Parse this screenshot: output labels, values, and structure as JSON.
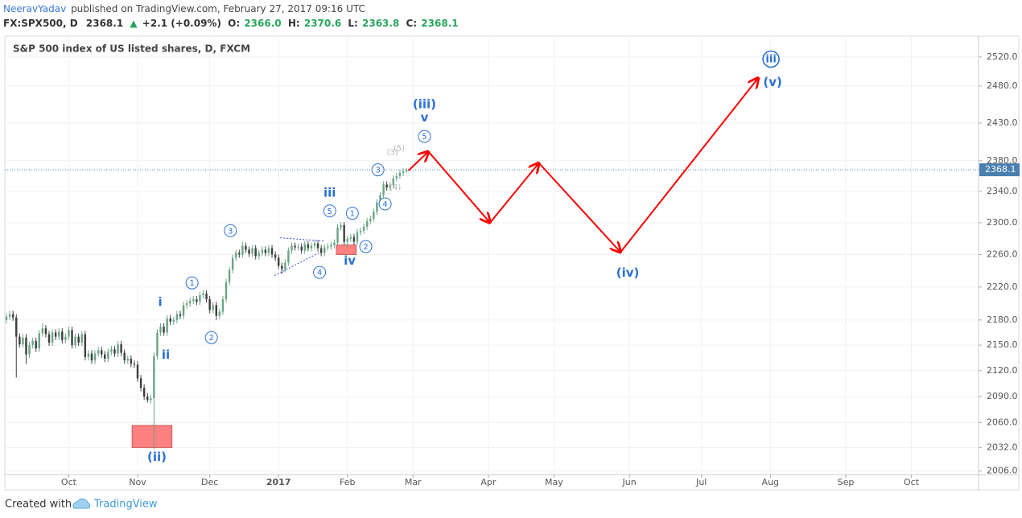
{
  "header": {
    "author": "NeeravYadav",
    "published": "published on TradingView.com, February 27, 2017 09:16 UTC",
    "symbol": "FX:SPX500, D",
    "last": "2368.1",
    "change_arrow": "▲",
    "change": "+2.1 (+0.09%)",
    "o_label": "O:",
    "o": "2366.0",
    "h_label": "H:",
    "h": "2370.6",
    "l_label": "L:",
    "l": "2363.8",
    "c_label": "C:",
    "c": "2368.1"
  },
  "chart_data": {
    "type": "candlestick",
    "title": "S&P 500 index of US listed shares, D, FXCM",
    "x": [
      -19,
      -18,
      -17,
      -16,
      -15,
      -14,
      -13,
      -12,
      -11,
      -10,
      -9,
      -8,
      -7,
      -6,
      -5,
      -4,
      -3,
      -2,
      -1,
      0,
      1,
      2,
      3,
      4,
      5,
      6,
      7,
      8,
      9,
      10,
      11,
      12,
      13,
      14,
      15,
      16,
      17,
      18,
      19,
      20,
      21,
      22,
      23,
      24,
      25,
      26,
      27,
      28,
      29,
      30,
      31,
      32,
      33,
      34,
      35,
      36,
      37,
      38,
      39,
      40,
      41,
      42,
      43,
      44,
      45,
      46,
      47,
      48,
      49,
      50,
      51,
      52,
      53,
      54,
      55,
      56,
      57,
      58,
      59,
      60,
      61,
      62,
      63,
      64,
      65,
      66,
      67,
      68,
      69,
      70,
      71,
      72,
      73,
      74,
      75,
      76,
      77,
      78,
      79,
      80,
      81,
      82,
      83,
      84,
      85,
      86,
      87,
      88,
      89,
      90,
      91,
      92,
      93,
      94,
      95,
      96,
      97,
      98,
      99,
      100,
      101,
      102,
      103
    ],
    "open": [
      2180,
      2184,
      2187,
      2183,
      2160,
      2151,
      2159,
      2139,
      2150,
      2155,
      2146,
      2164,
      2170,
      2163,
      2153,
      2165,
      2160,
      2166,
      2156,
      2160,
      2168,
      2150,
      2160,
      2153,
      2163,
      2136,
      2140,
      2132,
      2140,
      2144,
      2139,
      2134,
      2142,
      2145,
      2140,
      2151,
      2141,
      2132,
      2134,
      2128,
      2127,
      2111,
      2100,
      2090,
      2086,
      2088,
      2137,
      2165,
      2172,
      2165,
      2182,
      2178,
      2180,
      2187,
      2185,
      2198,
      2200,
      2203,
      2205,
      2202,
      2210,
      2212,
      2205,
      2192,
      2198,
      2185,
      2190,
      2205,
      2226,
      2241,
      2256,
      2262,
      2260,
      2271,
      2266,
      2261,
      2268,
      2258,
      2262,
      2266,
      2262,
      2268,
      2260,
      2256,
      2246,
      2242,
      2250,
      2265,
      2271,
      2269,
      2270,
      2265,
      2273,
      2268,
      2271,
      2274,
      2268,
      2262,
      2269,
      2270,
      2272,
      2275,
      2294,
      2297,
      2276,
      2280,
      2282,
      2276,
      2288,
      2290,
      2295,
      2302,
      2305,
      2314,
      2326,
      2335,
      2349,
      2345,
      2348,
      2357,
      2360,
      2364,
      2366.0
    ],
    "high": [
      2188,
      2191,
      2191,
      2187,
      2164,
      2163,
      2163,
      2154,
      2159,
      2159,
      2168,
      2176,
      2174,
      2167,
      2169,
      2169,
      2170,
      2170,
      2164,
      2172,
      2172,
      2164,
      2164,
      2167,
      2167,
      2144,
      2144,
      2144,
      2148,
      2148,
      2143,
      2146,
      2149,
      2149,
      2155,
      2155,
      2145,
      2138,
      2138,
      2132,
      2131,
      2115,
      2104,
      2094,
      2092,
      2141,
      2169,
      2176,
      2176,
      2186,
      2186,
      2184,
      2191,
      2191,
      2202,
      2204,
      2207,
      2209,
      2209,
      2214,
      2216,
      2216,
      2209,
      2202,
      2202,
      2194,
      2209,
      2230,
      2245,
      2260,
      2266,
      2266,
      2276,
      2275,
      2270,
      2272,
      2272,
      2266,
      2270,
      2270,
      2272,
      2272,
      2264,
      2260,
      2250,
      2254,
      2269,
      2275,
      2275,
      2274,
      2274,
      2277,
      2277,
      2275,
      2278,
      2278,
      2272,
      2273,
      2274,
      2276,
      2279,
      2298,
      2301,
      2301,
      2284,
      2286,
      2286,
      2292,
      2294,
      2299,
      2306,
      2309,
      2318,
      2330,
      2339,
      2353,
      2353,
      2352,
      2361,
      2364,
      2368,
      2370,
      2370.6
    ],
    "low": [
      2176,
      2180,
      2179,
      2112,
      2147,
      2147,
      2128,
      2135,
      2146,
      2142,
      2142,
      2160,
      2159,
      2149,
      2149,
      2156,
      2156,
      2152,
      2152,
      2156,
      2146,
      2146,
      2149,
      2149,
      2132,
      2132,
      2128,
      2128,
      2136,
      2135,
      2130,
      2130,
      2138,
      2136,
      2136,
      2137,
      2128,
      2128,
      2124,
      2123,
      2107,
      2096,
      2086,
      2083,
      2082,
      2030,
      2133,
      2161,
      2161,
      2161,
      2174,
      2174,
      2176,
      2181,
      2181,
      2194,
      2196,
      2199,
      2198,
      2198,
      2206,
      2201,
      2188,
      2188,
      2180,
      2181,
      2186,
      2201,
      2222,
      2237,
      2252,
      2256,
      2256,
      2262,
      2257,
      2257,
      2254,
      2254,
      2258,
      2258,
      2258,
      2256,
      2252,
      2242,
      2236,
      2238,
      2246,
      2261,
      2265,
      2265,
      2261,
      2261,
      2264,
      2264,
      2267,
      2264,
      2258,
      2258,
      2265,
      2266,
      2268,
      2271,
      2290,
      2272,
      2268,
      2276,
      2272,
      2272,
      2284,
      2286,
      2291,
      2298,
      2301,
      2310,
      2322,
      2331,
      2341,
      2341,
      2344,
      2353,
      2356,
      2360,
      2363.8
    ],
    "close": [
      2184,
      2187,
      2183,
      2160,
      2151,
      2159,
      2139,
      2150,
      2155,
      2146,
      2164,
      2170,
      2163,
      2153,
      2165,
      2160,
      2166,
      2156,
      2160,
      2168,
      2150,
      2160,
      2153,
      2163,
      2136,
      2140,
      2132,
      2140,
      2144,
      2139,
      2134,
      2142,
      2145,
      2140,
      2151,
      2141,
      2132,
      2134,
      2128,
      2127,
      2111,
      2100,
      2090,
      2086,
      2088,
      2137,
      2165,
      2172,
      2165,
      2182,
      2178,
      2180,
      2187,
      2185,
      2198,
      2200,
      2203,
      2205,
      2202,
      2210,
      2212,
      2205,
      2192,
      2198,
      2185,
      2190,
      2205,
      2226,
      2241,
      2256,
      2262,
      2260,
      2271,
      2266,
      2261,
      2268,
      2258,
      2262,
      2266,
      2262,
      2268,
      2260,
      2256,
      2246,
      2242,
      2250,
      2265,
      2271,
      2269,
      2270,
      2265,
      2273,
      2268,
      2271,
      2274,
      2268,
      2262,
      2269,
      2270,
      2272,
      2275,
      2294,
      2297,
      2276,
      2280,
      2282,
      2276,
      2288,
      2290,
      2295,
      2302,
      2305,
      2314,
      2326,
      2335,
      2349,
      2345,
      2348,
      2357,
      2360,
      2364,
      2366,
      2368.1
    ],
    "up_color": "#6ba583",
    "down_color": "#3f3f3f",
    "xlim": [
      -19.5,
      277.5
    ],
    "xticks": [
      {
        "value": 0,
        "label": "Oct"
      },
      {
        "value": 21,
        "label": "Nov"
      },
      {
        "value": 43,
        "label": "Dec"
      },
      {
        "value": 64,
        "label": "2017"
      },
      {
        "value": 85,
        "label": "Feb"
      },
      {
        "value": 105,
        "label": "Mar"
      },
      {
        "value": 128,
        "label": "Apr"
      },
      {
        "value": 148,
        "label": "May"
      },
      {
        "value": 171,
        "label": "Jun"
      },
      {
        "value": 193,
        "label": "Jul"
      },
      {
        "value": 214,
        "label": "Aug"
      },
      {
        "value": 237,
        "label": "Sep"
      },
      {
        "value": 257,
        "label": "Oct"
      }
    ],
    "ylim": [
      2002,
      2549
    ],
    "log_scale": true,
    "grid": true,
    "yticks": [
      {
        "value": 2520,
        "label": "2520.0"
      },
      {
        "value": 2480,
        "label": "2480.0"
      },
      {
        "value": 2430,
        "label": "2430.0"
      },
      {
        "value": 2380,
        "label": "2380.0"
      },
      {
        "value": 2340,
        "label": "2340.0"
      },
      {
        "value": 2300,
        "label": "2300.0"
      },
      {
        "value": 2260,
        "label": "2260.0"
      },
      {
        "value": 2220,
        "label": "2220.0"
      },
      {
        "value": 2180,
        "label": "2180.0"
      },
      {
        "value": 2150,
        "label": "2150.0"
      },
      {
        "value": 2120,
        "label": "2120.0"
      },
      {
        "value": 2090,
        "label": "2090.0"
      },
      {
        "value": 2060,
        "label": "2060.0"
      },
      {
        "value": 2032,
        "label": "2032.0"
      },
      {
        "value": 2006,
        "label": "2006.0"
      }
    ],
    "last_price_color": "#4a7fb0",
    "annotation_color": "#2a6fd6",
    "faint_color": "#b5b5b5",
    "annotations": [
      {
        "text": "i",
        "x": 27.9,
        "y": 2201,
        "circled": false
      },
      {
        "text": "ii",
        "x": 29.6,
        "y": 2138,
        "circled": false
      },
      {
        "text": "(ii)",
        "x": 26.9,
        "y": 2021,
        "circled": false
      },
      {
        "text": "1",
        "x": 37.6,
        "y": 2225,
        "circled": true
      },
      {
        "text": "2",
        "x": 43.5,
        "y": 2159,
        "circled": true
      },
      {
        "text": "3",
        "x": 49.3,
        "y": 2290,
        "circled": true
      },
      {
        "text": "4",
        "x": 76.5,
        "y": 2238,
        "circled": true
      },
      {
        "text": "5",
        "x": 79.6,
        "y": 2315,
        "circled": true
      },
      {
        "text": "iii",
        "x": 79.6,
        "y": 2338,
        "circled": false
      },
      {
        "text": "iv",
        "x": 85.7,
        "y": 2252,
        "circled": false
      },
      {
        "text": "1",
        "x": 86.5,
        "y": 2312,
        "circled": true
      },
      {
        "text": "2",
        "x": 90.6,
        "y": 2270,
        "circled": true
      },
      {
        "text": "3",
        "x": 94.3,
        "y": 2368,
        "circled": true
      },
      {
        "text": "4",
        "x": 96.5,
        "y": 2324,
        "circled": true
      },
      {
        "text": "(3)",
        "x": 98.7,
        "y": 2391,
        "circled": false,
        "faint": true
      },
      {
        "text": "(5)",
        "x": 100.8,
        "y": 2396,
        "circled": false,
        "faint": true
      },
      {
        "text": "(4)",
        "x": 99.6,
        "y": 2345,
        "circled": false,
        "faint": true
      },
      {
        "text": "5",
        "x": 108.5,
        "y": 2412,
        "circled": true
      },
      {
        "text": "(iii)",
        "x": 108.5,
        "y": 2455,
        "circled": false
      },
      {
        "text": "v",
        "x": 108.5,
        "y": 2437,
        "circled": false
      },
      {
        "text": "(iv)",
        "x": 170.5,
        "y": 2237,
        "circled": false
      },
      {
        "text": "iii",
        "x": 214.2,
        "y": 2517,
        "circled": true
      },
      {
        "text": "(v)",
        "x": 214.7,
        "y": 2485,
        "circled": false
      }
    ],
    "forecast": {
      "color": "#ff0000",
      "x": [
        103.6,
        109.7,
        128.5,
        143.4,
        168.3,
        210.3
      ],
      "y": [
        2367,
        2392,
        2300,
        2377,
        2263,
        2491
      ]
    },
    "boxes": [
      {
        "x": [
          19.3,
          31.5
        ],
        "y": [
          2032,
          2057
        ],
        "color": "#ff8080"
      },
      {
        "x": [
          81.6,
          87.7
        ],
        "y": [
          2260,
          2272
        ],
        "color": "#ff8080"
      }
    ],
    "trendlines": [
      {
        "x": [
          62.8,
          76.7
        ],
        "y": [
          2234,
          2263
        ]
      },
      {
        "x": [
          64.5,
          77.7
        ],
        "y": [
          2281,
          2277
        ]
      }
    ]
  },
  "footer": {
    "created": "Created with",
    "brand": "TradingView"
  }
}
